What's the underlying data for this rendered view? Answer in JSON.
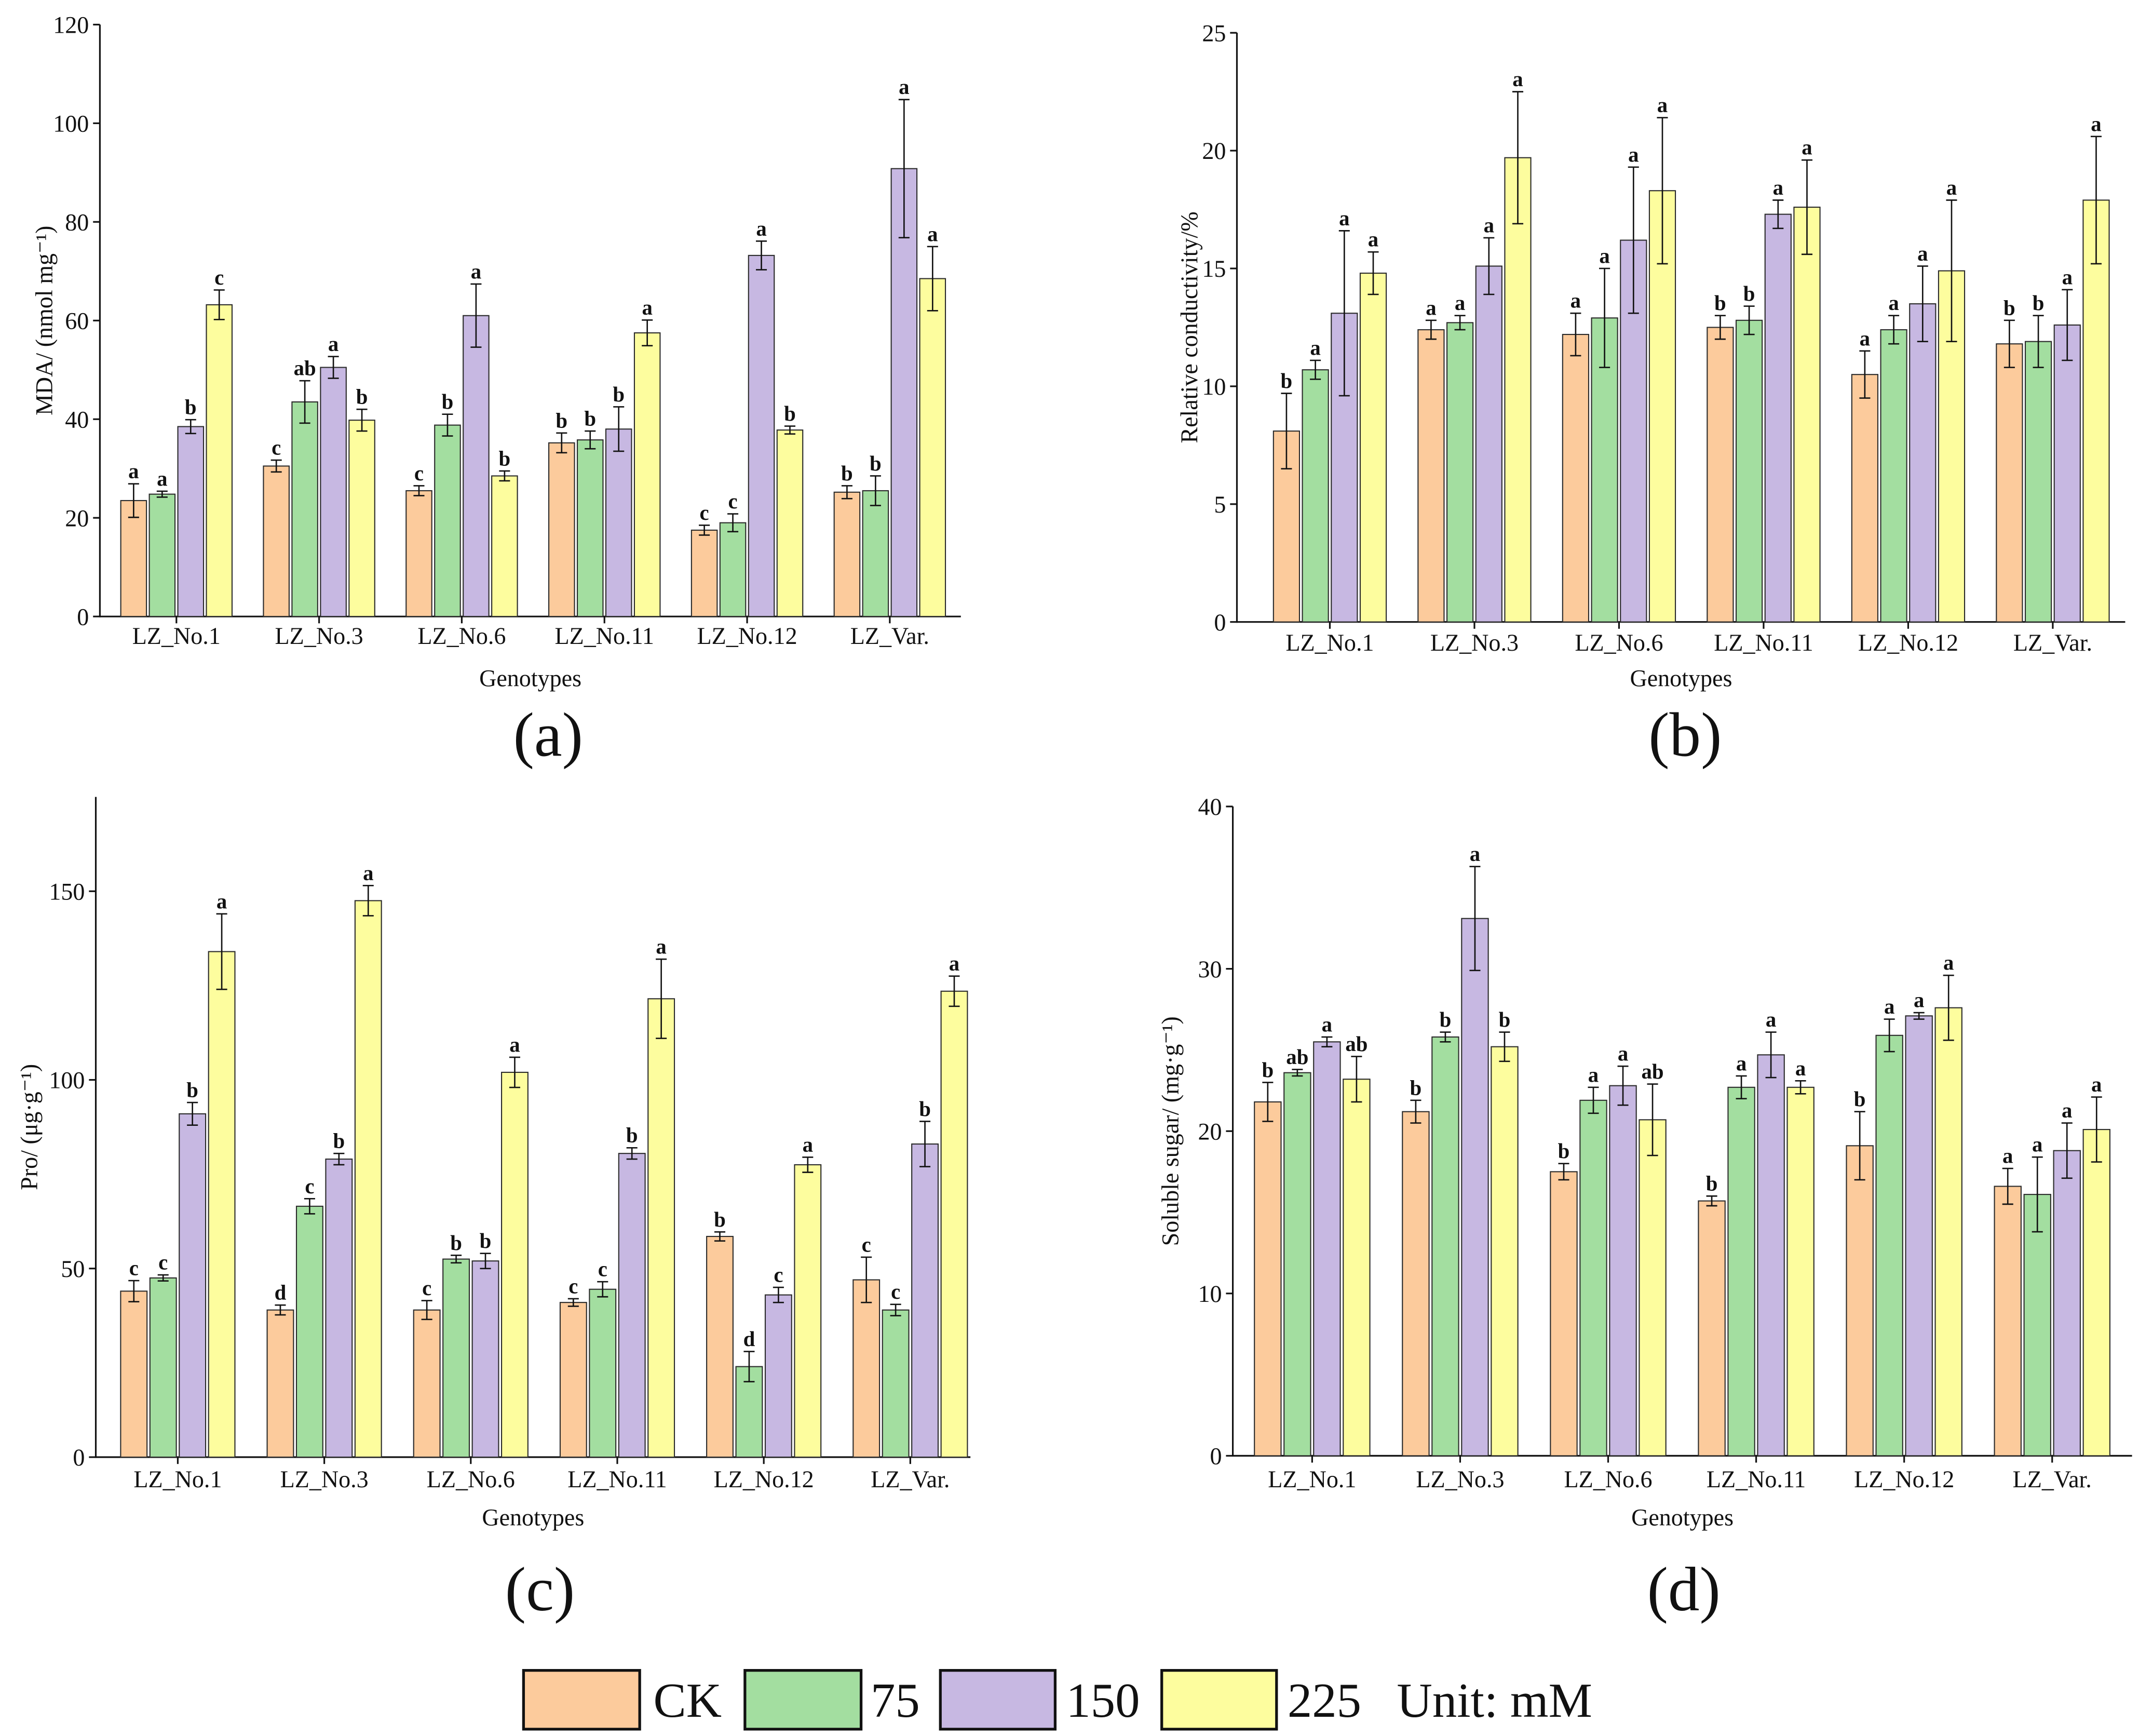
{
  "chart_data": [
    {
      "panel": "(a)",
      "type": "bar",
      "categories": [
        "LZ_No.1",
        "LZ_No.3",
        "LZ_No.6",
        "LZ_No.11",
        "LZ_No.12",
        "LZ_Var."
      ],
      "xlabel": "Genotypes",
      "ylabel": "MDA/ (nmol mg⁻¹)",
      "ylim": [
        0,
        120
      ],
      "yticks": [
        0,
        20,
        40,
        60,
        80,
        100,
        120
      ],
      "series": [
        {
          "name": "CK",
          "values": [
            23.5,
            30.5,
            25.5,
            35.2,
            17.5,
            25.2
          ],
          "errors": [
            3.4,
            1.2,
            1.0,
            2.0,
            1.0,
            1.3
          ],
          "letters": [
            "a",
            "c",
            "c",
            "b",
            "c",
            "b"
          ]
        },
        {
          "name": "75",
          "values": [
            24.8,
            43.5,
            38.8,
            35.8,
            19.0,
            25.5
          ],
          "errors": [
            0.6,
            4.3,
            2.2,
            1.8,
            1.8,
            3.0
          ],
          "letters": [
            "a",
            "ab",
            "b",
            "b",
            "c",
            "b"
          ]
        },
        {
          "name": "150",
          "values": [
            38.5,
            50.5,
            61.0,
            38.0,
            73.2,
            90.8
          ],
          "errors": [
            1.4,
            2.2,
            6.4,
            4.5,
            2.9,
            14.0
          ],
          "letters": [
            "b",
            "a",
            "a",
            "b",
            "a",
            "a"
          ]
        },
        {
          "name": "225",
          "values": [
            63.2,
            39.8,
            28.5,
            57.5,
            37.8,
            68.5
          ],
          "errors": [
            3.0,
            2.2,
            1.0,
            2.6,
            0.8,
            6.5
          ],
          "letters": [
            "c",
            "b",
            "b",
            "a",
            "b",
            "a"
          ]
        }
      ]
    },
    {
      "panel": "(b)",
      "type": "bar",
      "categories": [
        "LZ_No.1",
        "LZ_No.3",
        "LZ_No.6",
        "LZ_No.11",
        "LZ_No.12",
        "LZ_Var."
      ],
      "xlabel": "Genotypes",
      "ylabel": "Relative conductivity/%",
      "ylim": [
        0,
        25
      ],
      "yticks": [
        0,
        5,
        10,
        15,
        20,
        25
      ],
      "series": [
        {
          "name": "CK",
          "values": [
            8.1,
            12.4,
            12.2,
            12.5,
            10.5,
            11.8
          ],
          "errors": [
            1.6,
            0.4,
            0.9,
            0.5,
            1.0,
            1.0
          ],
          "letters": [
            "b",
            "a",
            "a",
            "b",
            "a",
            "b"
          ]
        },
        {
          "name": "75",
          "values": [
            10.7,
            12.7,
            12.9,
            12.8,
            12.4,
            11.9
          ],
          "errors": [
            0.4,
            0.3,
            2.1,
            0.6,
            0.6,
            1.1
          ],
          "letters": [
            "a",
            "a",
            "a",
            "b",
            "a",
            "b"
          ]
        },
        {
          "name": "150",
          "values": [
            13.1,
            15.1,
            16.2,
            17.3,
            13.5,
            12.6
          ],
          "errors": [
            3.5,
            1.2,
            3.1,
            0.6,
            1.6,
            1.5
          ],
          "letters": [
            "a",
            "a",
            "a",
            "a",
            "a",
            "a"
          ]
        },
        {
          "name": "225",
          "values": [
            14.8,
            19.7,
            18.3,
            17.6,
            14.9,
            17.9
          ],
          "errors": [
            0.9,
            2.8,
            3.1,
            2.0,
            3.0,
            2.7
          ],
          "letters": [
            "a",
            "a",
            "a",
            "a",
            "a",
            "a"
          ]
        }
      ]
    },
    {
      "panel": "(c)",
      "type": "bar",
      "categories": [
        "LZ_No.1",
        "LZ_No.3",
        "LZ_No.6",
        "LZ_No.11",
        "LZ_No.12",
        "LZ_Var."
      ],
      "xlabel": "Genotypes",
      "ylabel": "Pro/ (μg·g⁻¹)",
      "ylim": [
        0,
        175
      ],
      "yticks": [
        0,
        50,
        100,
        150
      ],
      "series": [
        {
          "name": "CK",
          "values": [
            44.0,
            39.0,
            39.0,
            41.0,
            58.5,
            47.0
          ],
          "errors": [
            2.8,
            1.3,
            2.5,
            1.0,
            1.2,
            6.0
          ],
          "letters": [
            "c",
            "d",
            "c",
            "c",
            "b",
            "c"
          ]
        },
        {
          "name": "75",
          "values": [
            47.5,
            66.5,
            52.5,
            44.5,
            24.0,
            39.0
          ],
          "errors": [
            0.8,
            2.0,
            1.0,
            2.0,
            4.0,
            1.5
          ],
          "letters": [
            "c",
            "c",
            "b",
            "c",
            "d",
            "c"
          ]
        },
        {
          "name": "150",
          "values": [
            91.0,
            79.0,
            52.0,
            80.5,
            43.0,
            83.0
          ],
          "errors": [
            3.0,
            1.5,
            2.0,
            1.5,
            2.0,
            6.0
          ],
          "letters": [
            "b",
            "b",
            "b",
            "b",
            "c",
            "b"
          ]
        },
        {
          "name": "225",
          "values": [
            134.0,
            147.5,
            102.0,
            121.5,
            77.5,
            123.5
          ],
          "errors": [
            10.0,
            4.0,
            4.0,
            10.5,
            2.0,
            4.0
          ],
          "letters": [
            "a",
            "a",
            "a",
            "a",
            "a",
            "a"
          ]
        }
      ]
    },
    {
      "panel": "(d)",
      "type": "bar",
      "categories": [
        "LZ_No.1",
        "LZ_No.3",
        "LZ_No.6",
        "LZ_No.11",
        "LZ_No.12",
        "LZ_Var."
      ],
      "xlabel": "Genotypes",
      "ylabel": "Soluble sugar/ (mg·g⁻¹)",
      "ylim": [
        0,
        40
      ],
      "yticks": [
        0,
        10,
        20,
        30,
        40
      ],
      "series": [
        {
          "name": "CK",
          "values": [
            21.8,
            21.2,
            17.5,
            15.7,
            19.1,
            16.6
          ],
          "errors": [
            1.2,
            0.7,
            0.5,
            0.3,
            2.1,
            1.1
          ],
          "letters": [
            "b",
            "b",
            "b",
            "b",
            "b",
            "a"
          ]
        },
        {
          "name": "75",
          "values": [
            23.6,
            25.8,
            21.9,
            22.7,
            25.9,
            16.1
          ],
          "errors": [
            0.2,
            0.3,
            0.8,
            0.7,
            1.0,
            2.3
          ],
          "letters": [
            "ab",
            "b",
            "a",
            "a",
            "a",
            "a"
          ]
        },
        {
          "name": "150",
          "values": [
            25.5,
            33.1,
            22.8,
            24.7,
            27.1,
            18.8
          ],
          "errors": [
            0.3,
            3.2,
            1.2,
            1.4,
            0.2,
            1.7
          ],
          "letters": [
            "a",
            "a",
            "a",
            "a",
            "a",
            "a"
          ]
        },
        {
          "name": "225",
          "values": [
            23.2,
            25.2,
            20.7,
            22.7,
            27.6,
            20.1
          ],
          "errors": [
            1.4,
            0.9,
            2.2,
            0.4,
            2.0,
            2.0
          ],
          "letters": [
            "ab",
            "b",
            "ab",
            "a",
            "a",
            "a"
          ]
        }
      ]
    }
  ],
  "legend": {
    "entries": [
      {
        "label": "CK",
        "color": "#FCCB9C"
      },
      {
        "label": "75",
        "color": "#A3DEA0"
      },
      {
        "label": "150",
        "color": "#C7B8E2"
      },
      {
        "label": "225",
        "color": "#FDFD9E"
      }
    ],
    "unit": "Unit: mM"
  }
}
